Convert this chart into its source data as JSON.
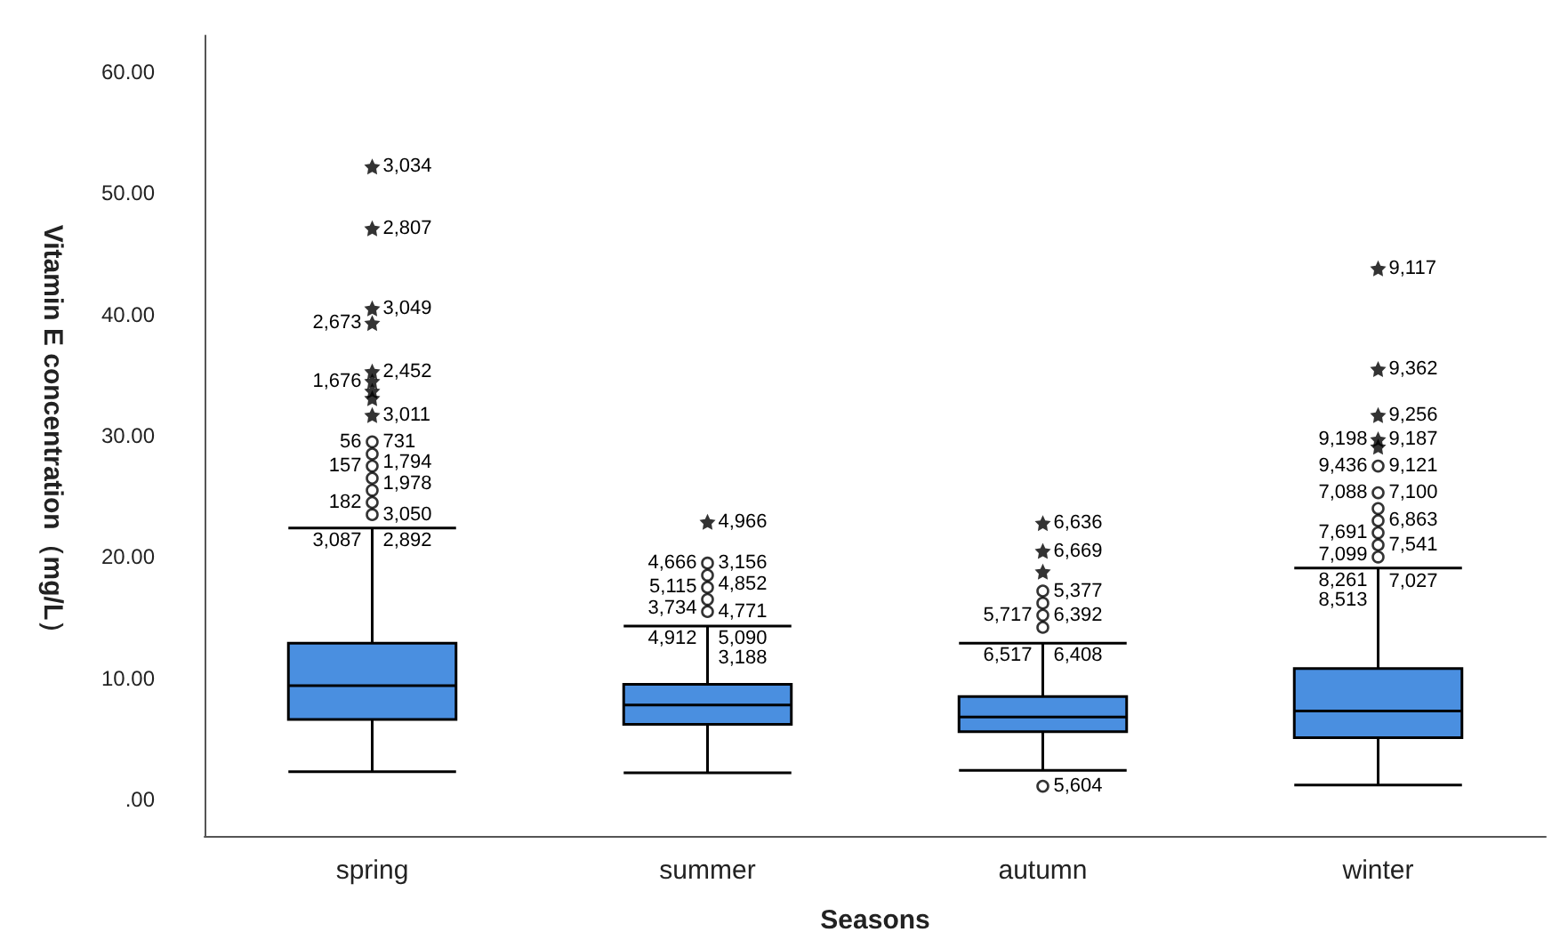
{
  "chart_data": {
    "type": "box",
    "xlabel": "Seasons",
    "ylabel": "Vitamin E concentration（mg/L）",
    "categories": [
      "spring",
      "summer",
      "autumn",
      "winter"
    ],
    "ylim": [
      -3,
      63
    ],
    "yticks": [
      {
        "value": 0,
        "label": ".00"
      },
      {
        "value": 10,
        "label": "10.00"
      },
      {
        "value": 20,
        "label": "20.00"
      },
      {
        "value": 30,
        "label": "30.00"
      },
      {
        "value": 40,
        "label": "40.00"
      },
      {
        "value": 50,
        "label": "50.00"
      },
      {
        "value": 60,
        "label": "60.00"
      }
    ],
    "grid": false,
    "series": [
      {
        "type": "box",
        "color": "#4a8fe0",
        "boxes": [
          {
            "low": 2.3,
            "q1": 6.6,
            "median": 9.4,
            "q3": 12.9,
            "high": 22.4
          },
          {
            "low": 2.2,
            "q1": 6.2,
            "median": 7.8,
            "q3": 9.5,
            "high": 14.3
          },
          {
            "low": 2.4,
            "q1": 5.6,
            "median": 6.8,
            "q3": 8.5,
            "high": 12.9
          },
          {
            "low": 1.2,
            "q1": 5.1,
            "median": 7.3,
            "q3": 10.8,
            "high": 19.1
          }
        ]
      },
      {
        "type": "scatter",
        "marker": "circle",
        "color": "#000000",
        "x": [
          "spring",
          "spring",
          "spring",
          "spring",
          "spring",
          "spring",
          "spring",
          "summer",
          "summer",
          "summer",
          "summer",
          "summer",
          "autumn",
          "autumn",
          "autumn",
          "autumn",
          "autumn",
          "winter",
          "winter",
          "winter",
          "winter",
          "winter",
          "winter",
          "winter"
        ],
        "values": [
          29.5,
          28.5,
          27.5,
          26.5,
          25.5,
          24.5,
          23.5,
          19.5,
          18.5,
          17.5,
          16.5,
          15.5,
          17.2,
          16.2,
          15.2,
          14.2,
          1.1,
          27.5,
          25.3,
          24,
          23,
          22,
          21,
          20
        ]
      },
      {
        "type": "scatter",
        "marker": "star",
        "color": "#000000",
        "x": [
          "spring",
          "spring",
          "spring",
          "spring",
          "spring",
          "spring",
          "spring",
          "spring",
          "spring",
          "summer",
          "autumn",
          "autumn",
          "autumn",
          "winter",
          "winter",
          "winter",
          "winter",
          "winter"
        ],
        "values": [
          52.2,
          47.1,
          40.5,
          39.3,
          35.3,
          34.5,
          33.7,
          33.1,
          31.7,
          22.9,
          22.8,
          20.5,
          18.8,
          43.8,
          35.5,
          31.7,
          29.7,
          29.1
        ]
      }
    ],
    "annotations": [
      {
        "text": "3,034",
        "x": "spring",
        "y": 52.2
      },
      {
        "text": "2,807",
        "x": "spring",
        "y": 47.1
      },
      {
        "text": "3,049",
        "x": "spring",
        "y": 40.5
      },
      {
        "text": "2,673",
        "x": "spring",
        "y": 39.3
      },
      {
        "text": "2,452",
        "x": "spring",
        "y": 35.3
      },
      {
        "text": "1,676",
        "x": "spring",
        "y": 34.5
      },
      {
        "text": "3,011",
        "x": "spring",
        "y": 31.7
      },
      {
        "text": "731",
        "x": "spring",
        "y": 29.5
      },
      {
        "text": "56",
        "x": "spring",
        "y": 29.5
      },
      {
        "text": "1,794",
        "x": "spring",
        "y": 28.5
      },
      {
        "text": "157",
        "x": "spring",
        "y": 27.5
      },
      {
        "text": "1,978",
        "x": "spring",
        "y": 26.5
      },
      {
        "text": "182",
        "x": "spring",
        "y": 24.5
      },
      {
        "text": "3,050",
        "x": "spring",
        "y": 23.5
      },
      {
        "text": "2,892",
        "x": "spring",
        "y": 22.4
      },
      {
        "text": "3,087",
        "x": "spring",
        "y": 22.4
      },
      {
        "text": "4,966",
        "x": "summer",
        "y": 22.9
      },
      {
        "text": "3,156",
        "x": "summer",
        "y": 19.5
      },
      {
        "text": "4,666",
        "x": "summer",
        "y": 19.5
      },
      {
        "text": "4,852",
        "x": "summer",
        "y": 18.5
      },
      {
        "text": "5,115",
        "x": "summer",
        "y": 17.5
      },
      {
        "text": "4,771",
        "x": "summer",
        "y": 15.5
      },
      {
        "text": "3,734",
        "x": "summer",
        "y": 16.5
      },
      {
        "text": "5,090",
        "x": "summer",
        "y": 14.3
      },
      {
        "text": "4,912",
        "x": "summer",
        "y": 14.3
      },
      {
        "text": "3,188",
        "x": "summer",
        "y": 14.3
      },
      {
        "text": "6,636",
        "x": "autumn",
        "y": 22.8
      },
      {
        "text": "6,669",
        "x": "autumn",
        "y": 20.5
      },
      {
        "text": "5,377",
        "x": "autumn",
        "y": 17.2
      },
      {
        "text": "6,392",
        "x": "autumn",
        "y": 15.2
      },
      {
        "text": "5,717",
        "x": "autumn",
        "y": 15.2
      },
      {
        "text": "6,408",
        "x": "autumn",
        "y": 12.9
      },
      {
        "text": "6,517",
        "x": "autumn",
        "y": 12.9
      },
      {
        "text": "5,604",
        "x": "autumn",
        "y": 1.1
      },
      {
        "text": "9,117",
        "x": "winter",
        "y": 43.8
      },
      {
        "text": "9,362",
        "x": "winter",
        "y": 35.5
      },
      {
        "text": "9,256",
        "x": "winter",
        "y": 31.7
      },
      {
        "text": "9,187",
        "x": "winter",
        "y": 29.7
      },
      {
        "text": "9,198",
        "x": "winter",
        "y": 29.7
      },
      {
        "text": "9,121",
        "x": "winter",
        "y": 27.5
      },
      {
        "text": "9,436",
        "x": "winter",
        "y": 27.5
      },
      {
        "text": "7,100",
        "x": "winter",
        "y": 25.3
      },
      {
        "text": "7,088",
        "x": "winter",
        "y": 25.3
      },
      {
        "text": "6,863",
        "x": "winter",
        "y": 23
      },
      {
        "text": "7,691",
        "x": "winter",
        "y": 22
      },
      {
        "text": "7,541",
        "x": "winter",
        "y": 21
      },
      {
        "text": "7,099",
        "x": "winter",
        "y": 20
      },
      {
        "text": "7,027",
        "x": "winter",
        "y": 20
      },
      {
        "text": "8,261",
        "x": "winter",
        "y": 19.1
      },
      {
        "text": "8,513",
        "x": "winter",
        "y": 19.1
      }
    ]
  }
}
